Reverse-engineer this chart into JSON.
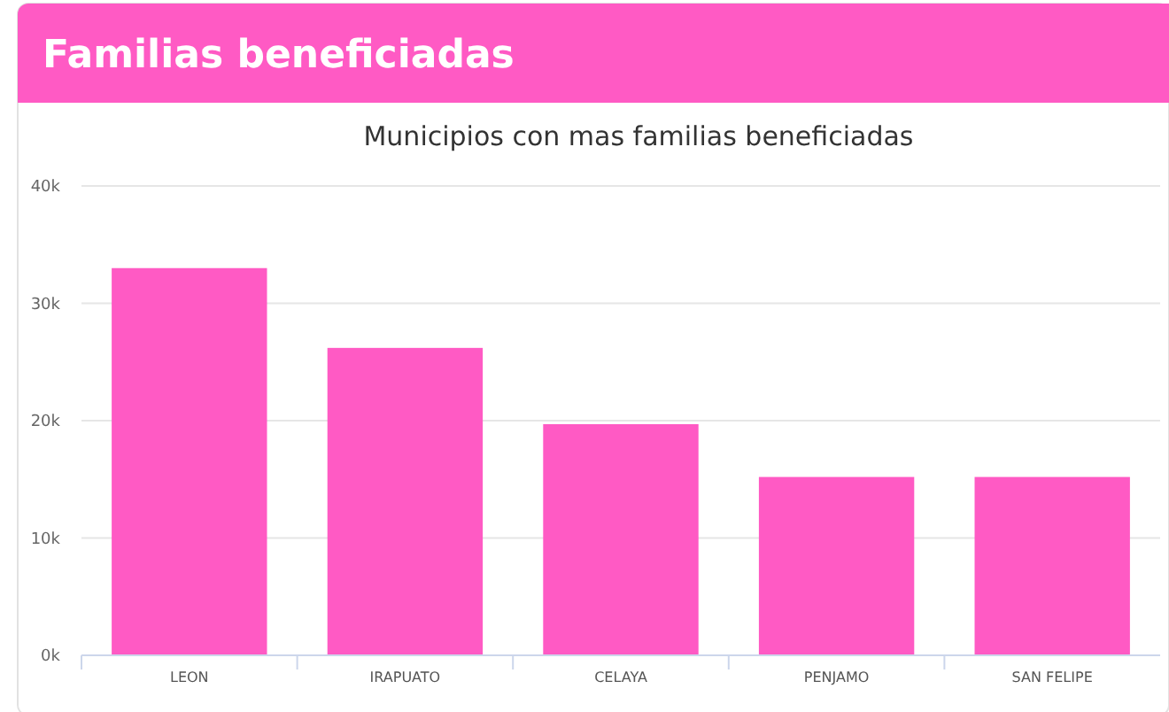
{
  "chart_data": {
    "type": "bar",
    "title": "Familias beneficiadas",
    "subtitle": "Municipios con mas familias beneficiadas",
    "categories": [
      "LEON",
      "IRAPUATO",
      "CELAYA",
      "PENJAMO",
      "SAN FELIPE"
    ],
    "values": [
      33000,
      26200,
      19700,
      15200,
      15200
    ],
    "color": "#ff5ac4",
    "ylim": [
      0,
      40000
    ],
    "yticks": [
      {
        "value": 0,
        "label": "0k"
      },
      {
        "value": 10000,
        "label": "10k"
      },
      {
        "value": 20000,
        "label": "20k"
      },
      {
        "value": 30000,
        "label": "30k"
      },
      {
        "value": 40000,
        "label": "40k"
      }
    ],
    "grid": true
  }
}
